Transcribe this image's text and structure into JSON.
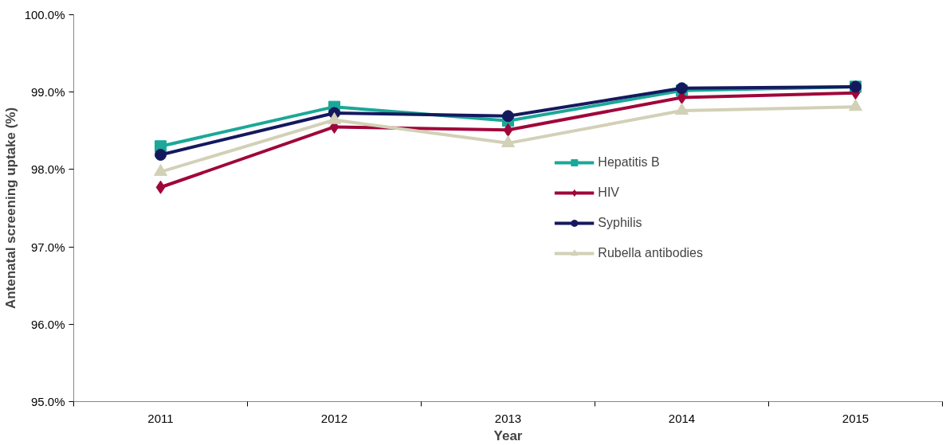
{
  "chart_data": {
    "type": "line",
    "xlabel": "Year",
    "ylabel": "Antenatal screening uptake (%)",
    "categories": [
      "2011",
      "2012",
      "2013",
      "2014",
      "2015"
    ],
    "series": [
      {
        "name": "Hepatitis B",
        "color": "#1aa898",
        "marker": "square",
        "values": [
          98.3,
          98.81,
          98.63,
          99.02,
          99.07
        ]
      },
      {
        "name": "HIV",
        "color": "#a0063a",
        "marker": "diamond",
        "values": [
          97.77,
          98.55,
          98.51,
          98.93,
          98.99
        ]
      },
      {
        "name": "Syphilis",
        "color": "#14195e",
        "marker": "circle",
        "values": [
          98.19,
          98.73,
          98.69,
          99.05,
          99.07
        ]
      },
      {
        "name": "Rubella antibodies",
        "color": "#d2d0b6",
        "marker": "triangle",
        "values": [
          97.97,
          98.64,
          98.34,
          98.76,
          98.81
        ]
      }
    ],
    "ylim": [
      95,
      100
    ],
    "yticks": [
      {
        "value": 95,
        "label": "95.0%"
      },
      {
        "value": 96,
        "label": "96.0%"
      },
      {
        "value": 97,
        "label": "97.0%"
      },
      {
        "value": 98,
        "label": "98.0%"
      },
      {
        "value": 99,
        "label": "99.0%"
      },
      {
        "value": 100,
        "label": "100.0%"
      }
    ],
    "grid": false,
    "legend": "right",
    "line_style": "solid"
  }
}
